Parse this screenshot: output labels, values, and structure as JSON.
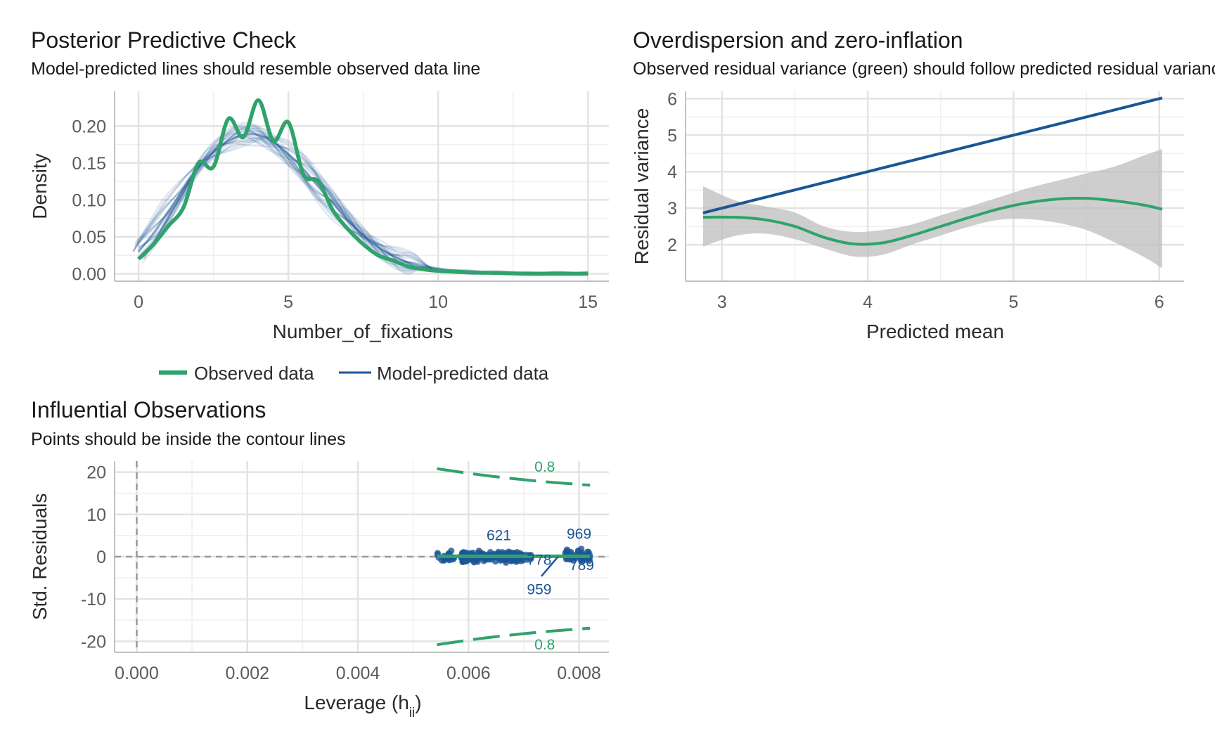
{
  "colors": {
    "observed": "#2fa36b",
    "predicted": "#1c5596",
    "ribbon": "#bdbdbd",
    "grid": "#e3e3e3",
    "tick_text": "#5b5b5b"
  },
  "chart_data": [
    {
      "id": "ppc",
      "type": "line",
      "title": "Posterior Predictive Check",
      "subtitle": "Model-predicted lines should resemble observed data line",
      "xlabel": "Number_of_fixations",
      "ylabel": "Density",
      "xlim": [
        -0.8,
        15.7
      ],
      "ylim": [
        -0.01,
        0.247
      ],
      "xticks": [
        0,
        5,
        10,
        15
      ],
      "xtick_labels": [
        "0",
        "5",
        "10",
        "15"
      ],
      "yticks": [
        0,
        0.05,
        0.1,
        0.15,
        0.2
      ],
      "ytick_labels": [
        "0.00",
        "0.05",
        "0.10",
        "0.15",
        "0.20"
      ],
      "grid": true,
      "legend": {
        "position": "bottom",
        "entries": [
          "Observed data",
          "Model-predicted data"
        ]
      },
      "series": [
        {
          "name": "Observed data",
          "x": [
            0,
            0.5,
            1,
            1.5,
            2,
            2.5,
            3,
            3.5,
            4,
            4.5,
            5,
            5.5,
            6,
            6.5,
            7,
            7.5,
            8,
            8.5,
            9,
            9.5,
            10,
            11,
            12,
            13,
            14,
            15
          ],
          "y": [
            0.02,
            0.04,
            0.065,
            0.09,
            0.15,
            0.145,
            0.21,
            0.185,
            0.235,
            0.18,
            0.205,
            0.135,
            0.125,
            0.085,
            0.06,
            0.04,
            0.025,
            0.018,
            0.01,
            0.006,
            0.004,
            0.002,
            0.001,
            0,
            0,
            0
          ]
        },
        {
          "name": "Model-predicted data",
          "x": [
            0,
            0.5,
            1,
            1.5,
            2,
            2.5,
            3,
            3.5,
            4,
            4.5,
            5,
            5.5,
            6,
            6.5,
            7,
            7.5,
            8,
            8.5,
            9,
            9.5,
            10,
            11,
            12,
            13,
            14,
            15
          ],
          "y": [
            0.03,
            0.055,
            0.085,
            0.115,
            0.145,
            0.165,
            0.18,
            0.188,
            0.188,
            0.178,
            0.162,
            0.142,
            0.118,
            0.095,
            0.072,
            0.052,
            0.036,
            0.024,
            0.015,
            0.009,
            0.005,
            0.002,
            0.001,
            0,
            0,
            0
          ]
        }
      ]
    },
    {
      "id": "overdispersion",
      "type": "line",
      "title": "Overdispersion and zero-inflation",
      "subtitle": "Observed residual variance (green) should follow predicted residual variance (blue)",
      "xlabel": "Predicted mean",
      "ylabel": "Residual variance",
      "xlim": [
        2.75,
        6.17
      ],
      "ylim": [
        1.0,
        6.2
      ],
      "xticks": [
        3,
        4,
        5,
        6
      ],
      "xtick_labels": [
        "3",
        "4",
        "5",
        "6"
      ],
      "yticks": [
        2,
        3,
        4,
        5,
        6
      ],
      "ytick_labels": [
        "2",
        "3",
        "4",
        "5",
        "6"
      ],
      "grid": true,
      "series": [
        {
          "name": "predicted",
          "x": [
            2.87,
            6.02
          ],
          "y": [
            2.87,
            6.02
          ]
        },
        {
          "name": "observed",
          "x": [
            2.87,
            3.1,
            3.3,
            3.5,
            3.7,
            3.9,
            4.1,
            4.3,
            4.5,
            4.7,
            4.9,
            5.1,
            5.3,
            5.5,
            5.7,
            5.9,
            6.02
          ],
          "y": [
            2.75,
            2.75,
            2.68,
            2.5,
            2.2,
            2.02,
            2.05,
            2.25,
            2.5,
            2.75,
            2.98,
            3.15,
            3.25,
            3.27,
            3.2,
            3.08,
            2.97
          ]
        }
      ],
      "ribbon": {
        "x": [
          2.87,
          3.1,
          3.3,
          3.5,
          3.7,
          3.9,
          4.1,
          4.3,
          4.5,
          4.7,
          4.9,
          5.1,
          5.3,
          5.5,
          5.7,
          5.9,
          6.02
        ],
        "lower": [
          1.95,
          2.25,
          2.3,
          2.15,
          1.9,
          1.68,
          1.72,
          2.0,
          2.25,
          2.5,
          2.68,
          2.7,
          2.6,
          2.4,
          2.05,
          1.65,
          1.35
        ],
        "upper": [
          3.6,
          3.2,
          3.05,
          2.88,
          2.5,
          2.35,
          2.4,
          2.55,
          2.8,
          3.05,
          3.3,
          3.55,
          3.75,
          3.95,
          4.15,
          4.45,
          4.62
        ]
      }
    },
    {
      "id": "influential",
      "type": "scatter",
      "title": "Influential Observations",
      "subtitle": "Points should be inside the contour lines",
      "xlabel": "Leverage (h",
      "xlabel_sub": "ii",
      "xlabel_close": ")",
      "ylabel": "Std. Residuals",
      "xlim": [
        -0.0004,
        0.00854
      ],
      "ylim": [
        -22.6,
        22.6
      ],
      "xticks": [
        0,
        0.002,
        0.004,
        0.006,
        0.008
      ],
      "xtick_labels": [
        "0.000",
        "0.002",
        "0.004",
        "0.006",
        "0.008"
      ],
      "yticks": [
        -20,
        -10,
        0,
        10,
        20
      ],
      "ytick_labels": [
        "-20",
        "-10",
        "0",
        "10",
        "20"
      ],
      "grid": true,
      "reference_lines": {
        "x": 0,
        "y": 0
      },
      "contours": [
        {
          "label": "0.8",
          "x": [
            0.00543,
            0.00625,
            0.007,
            0.0075,
            0.0082
          ],
          "y": [
            20.8,
            19.3,
            18.2,
            17.6,
            16.9
          ]
        },
        {
          "label": "0.8",
          "x": [
            0.00543,
            0.00625,
            0.007,
            0.0075,
            0.0082
          ],
          "y": [
            -20.8,
            -19.3,
            -18.2,
            -17.6,
            -16.9
          ]
        }
      ],
      "contour_labels": [
        {
          "text": "0.8",
          "x": 0.00738,
          "y": 21.4
        },
        {
          "text": "0.8",
          "x": 0.00738,
          "y": -20.6
        }
      ],
      "point_clusters": [
        {
          "x_min": 0.00543,
          "x_max": 0.00575,
          "y_sd": 0.9,
          "count": 22
        },
        {
          "x_min": 0.00585,
          "x_max": 0.00715,
          "y_sd": 0.8,
          "count": 150
        },
        {
          "x_min": 0.00775,
          "x_max": 0.0082,
          "y_sd": 1.0,
          "count": 48
        }
      ],
      "smooth": {
        "x": [
          0.00543,
          0.0082
        ],
        "y": [
          0.1,
          0.1
        ]
      },
      "labeled_points": [
        {
          "text": "621",
          "x": 0.00655,
          "y": 5.2
        },
        {
          "text": "969",
          "x": 0.008,
          "y": 5.6
        },
        {
          "text": "959",
          "x": 0.00728,
          "y": -7.6
        },
        {
          "text": "778",
          "x": 0.00728,
          "y": -0.6
        },
        {
          "text": "789",
          "x": 0.00805,
          "y": -1.8
        }
      ],
      "leader": {
        "x": [
          0.00732,
          0.00762
        ],
        "y": [
          -4.6,
          0.0
        ]
      }
    }
  ]
}
